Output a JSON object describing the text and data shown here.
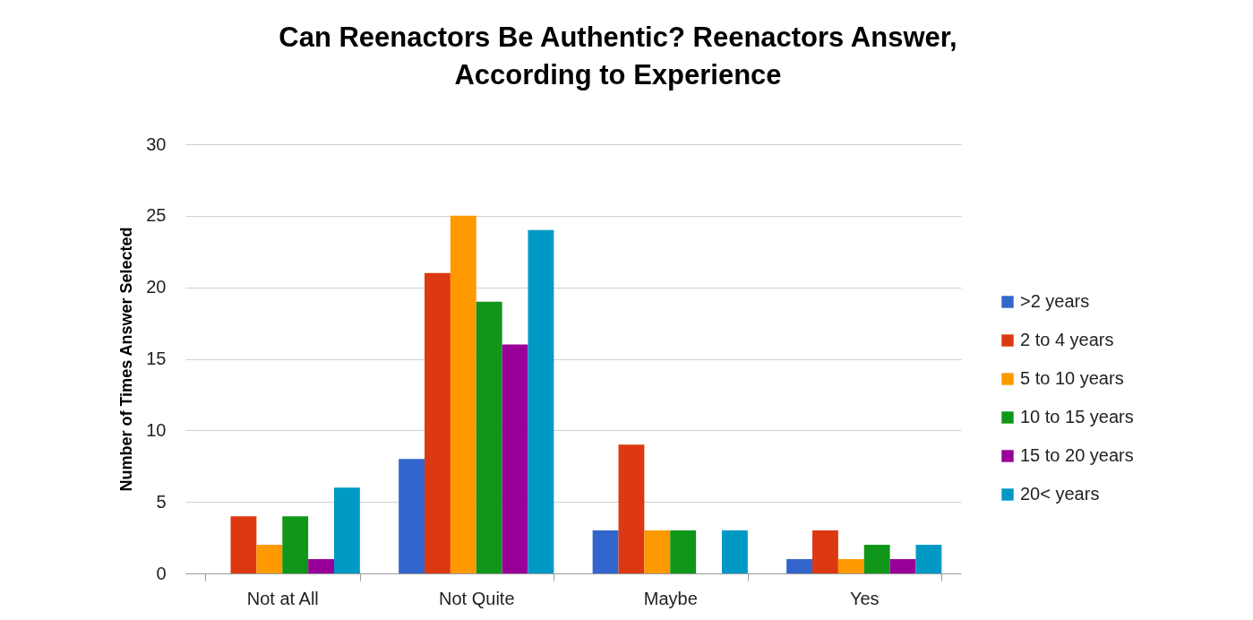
{
  "chart_data": {
    "type": "bar",
    "title": "Can Reenactors Be Authentic? Reenactors Answer, According to Experience",
    "ylabel": "Number of Times Answer Selected",
    "categories": [
      "Not at All",
      "Not Quite",
      "Maybe",
      "Yes"
    ],
    "series": [
      {
        "name": ">2 years",
        "color": "#3366cc",
        "values": [
          0,
          8,
          3,
          1
        ]
      },
      {
        "name": "2 to 4 years",
        "color": "#dc3912",
        "values": [
          4,
          21,
          9,
          3
        ]
      },
      {
        "name": "5 to 10 years",
        "color": "#ff9900",
        "values": [
          2,
          25,
          3,
          1
        ]
      },
      {
        "name": "10 to 15 years",
        "color": "#109618",
        "values": [
          4,
          19,
          3,
          2
        ]
      },
      {
        "name": "15 to 20 years",
        "color": "#990099",
        "values": [
          1,
          16,
          0,
          1
        ]
      },
      {
        "name": "20< years",
        "color": "#0099c6",
        "values": [
          6,
          24,
          3,
          2
        ]
      }
    ],
    "ylim": [
      0,
      30
    ],
    "yticks": [
      0,
      5,
      10,
      15,
      20,
      25,
      30
    ],
    "grid": "y",
    "legend": "right"
  }
}
